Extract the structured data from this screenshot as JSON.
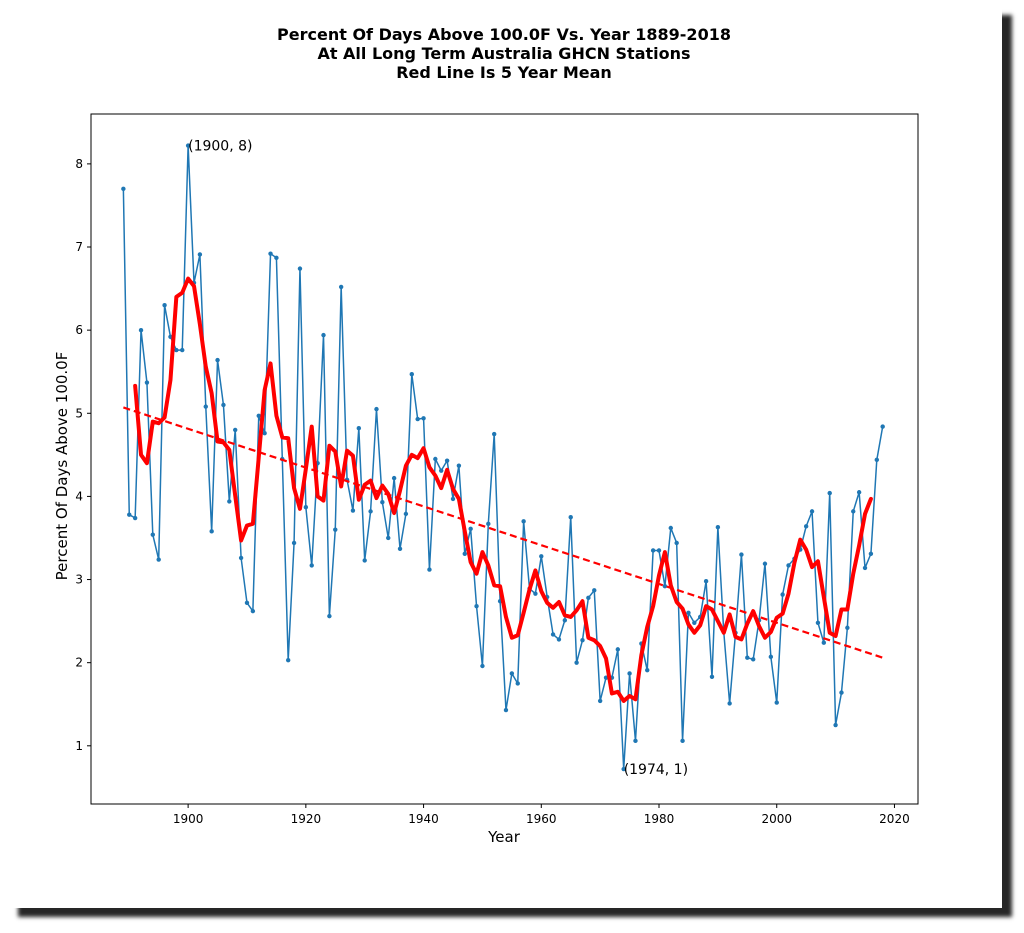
{
  "chart_data": {
    "type": "line",
    "title_lines": [
      "Percent Of Days Above 100.0F Vs. Year 1889-2018",
      "At All Long Term Australia GHCN Stations",
      "Red Line Is 5 Year Mean"
    ],
    "xlabel": "Year",
    "ylabel": "Percent Of Days Above 100.0F",
    "xlim": [
      1883.5,
      2024
    ],
    "ylim": [
      0.3,
      8.6
    ],
    "xticks": [
      1900,
      1920,
      1940,
      1960,
      1980,
      2000,
      2020
    ],
    "yticks": [
      1,
      2,
      3,
      4,
      5,
      6,
      7,
      8
    ],
    "grid": false,
    "series": [
      {
        "type": "line-with-markers",
        "color": "#1f77b4",
        "x_start": 1889,
        "values": [
          7.7,
          3.78,
          3.74,
          6.0,
          5.37,
          3.54,
          3.24,
          6.3,
          5.92,
          5.76,
          5.76,
          8.22,
          6.57,
          6.91,
          5.08,
          3.58,
          5.64,
          5.1,
          3.94,
          4.8,
          3.26,
          2.72,
          2.62,
          4.97,
          4.76,
          6.92,
          6.87,
          4.45,
          2.03,
          3.44,
          6.74,
          3.87,
          3.17,
          4.4,
          5.94,
          2.56,
          3.6,
          6.52,
          4.2,
          3.83,
          4.82,
          3.23,
          3.82,
          5.05,
          3.93,
          3.5,
          4.22,
          3.37,
          3.79,
          5.47,
          4.93,
          4.94,
          3.12,
          4.45,
          4.31,
          4.43,
          3.97,
          4.37,
          3.31,
          3.61,
          2.68,
          1.96,
          3.67,
          4.75,
          2.74,
          1.43,
          1.87,
          1.75,
          3.7,
          2.89,
          2.83,
          3.28,
          2.79,
          2.34,
          2.28,
          2.51,
          3.75,
          2.0,
          2.27,
          2.78,
          2.87,
          1.54,
          1.82,
          1.82,
          2.16,
          0.72,
          1.87,
          1.06,
          2.23,
          1.91,
          3.35,
          3.35,
          2.92,
          3.62,
          3.44,
          1.06,
          2.6,
          2.48,
          2.55,
          2.98,
          1.83,
          3.63,
          2.37,
          1.51,
          2.36,
          3.3,
          2.06,
          2.04,
          2.51,
          3.19,
          2.07,
          1.52,
          2.82,
          3.17,
          3.25,
          3.36,
          3.64,
          3.82,
          2.48,
          2.24,
          4.04,
          1.25,
          1.64,
          2.42,
          3.82,
          4.05,
          3.14,
          3.31,
          4.44,
          4.84
        ]
      },
      {
        "type": "line",
        "color": "#ff0000",
        "x_start": 1891,
        "values": [
          5.33,
          4.5,
          4.4,
          4.9,
          4.88,
          4.95,
          5.4,
          6.4,
          6.45,
          6.62,
          6.53,
          6.07,
          5.56,
          5.24,
          4.66,
          4.65,
          4.56,
          4.01,
          3.47,
          3.65,
          3.67,
          4.47,
          5.28,
          5.6,
          4.97,
          4.71,
          4.7,
          4.1,
          3.85,
          4.33,
          4.84,
          4.0,
          3.95,
          4.61,
          4.54,
          4.12,
          4.55,
          4.49,
          3.96,
          4.14,
          4.19,
          3.98,
          4.13,
          4.03,
          3.8,
          4.07,
          4.37,
          4.5,
          4.46,
          4.58,
          4.35,
          4.25,
          4.1,
          4.32,
          4.09,
          3.97,
          3.58,
          3.21,
          3.07,
          3.33,
          3.17,
          2.93,
          2.92,
          2.55,
          2.3,
          2.33,
          2.6,
          2.88,
          3.11,
          2.86,
          2.72,
          2.66,
          2.73,
          2.57,
          2.55,
          2.63,
          2.74,
          2.3,
          2.27,
          2.2,
          2.05,
          1.63,
          1.65,
          1.54,
          1.6,
          1.56,
          2.09,
          2.43,
          2.68,
          3.05,
          3.33,
          2.93,
          2.73,
          2.65,
          2.46,
          2.36,
          2.45,
          2.68,
          2.64,
          2.5,
          2.36,
          2.58,
          2.31,
          2.28,
          2.47,
          2.62,
          2.44,
          2.3,
          2.37,
          2.54,
          2.59,
          2.83,
          3.2,
          3.48,
          3.36,
          3.15,
          3.22,
          2.79,
          2.36,
          2.32,
          2.64,
          2.64,
          3.07,
          3.41,
          3.79,
          3.97
        ]
      },
      {
        "type": "trend-line",
        "color": "#ff0000",
        "dashed": true,
        "x": [
          1889,
          2018
        ],
        "y": [
          5.07,
          2.06
        ]
      }
    ],
    "annotations": [
      {
        "text": "(1900, 8)",
        "x": 1900,
        "y": 8.22
      },
      {
        "text": "(1974, 1)",
        "x": 1974,
        "y": 0.72
      }
    ]
  }
}
